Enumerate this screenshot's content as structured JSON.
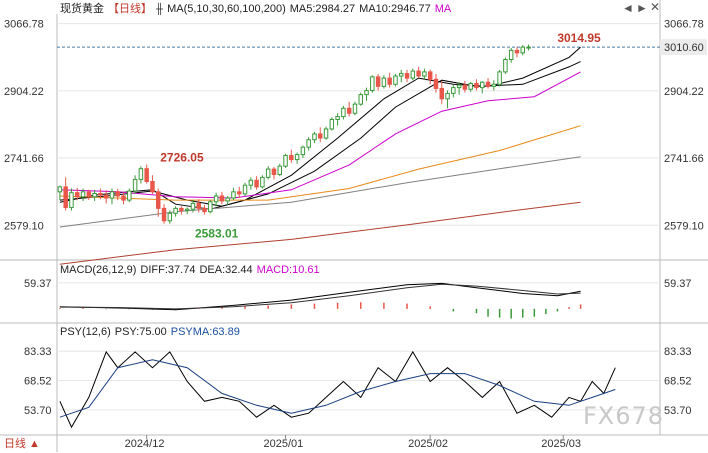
{
  "header": {
    "instrument": "现货黄金",
    "period_tag": "【日线】",
    "ma_label": "MA(5,10,30,60,100,200)",
    "ma5_label": "MA5:2984.27",
    "ma10_label": "MA10:2946.77",
    "ma_toggle": "MA",
    "nav_left": "◄",
    "nav_right": "►",
    "close_btn": "✕"
  },
  "macd_legend": {
    "title": "MACD(26,12,9)",
    "diff": "DIFF:37.74",
    "dea": "DEA:32.44",
    "macd": "MACD:10.61"
  },
  "psy_legend": {
    "title": "PSY(12,6)",
    "psy": "PSY:75.00",
    "psyma": "PSYMA:63.89"
  },
  "footer": {
    "period_button": "日线 ▲"
  },
  "watermark": "FX678",
  "colors": {
    "up": "#3a9a3a",
    "down": "#e8574a",
    "ma5": "#000000",
    "ma10": "#000000",
    "ma30": "#cc00cc",
    "ma60": "#e88a1a",
    "ma100": "#808080",
    "ma200": "#b04030",
    "last_price_bg": "#ececec",
    "grid": "#e6e6e6"
  },
  "chart_data": [
    {
      "type": "candlestick",
      "name": "price",
      "y_ticks": [
        "3066.78",
        "2904.22",
        "2741.66",
        "2579.10"
      ],
      "y_tick_values": [
        3066.78,
        2904.22,
        2741.66,
        2579.1
      ],
      "ylim": [
        2500,
        3090
      ],
      "x_labels": [
        {
          "index": 15,
          "label": "2024/12"
        },
        {
          "index": 39,
          "label": "2025/01"
        },
        {
          "index": 64,
          "label": "2025/02"
        },
        {
          "index": 87,
          "label": "2025/03"
        }
      ],
      "last_price": "3010.60",
      "annotations": [
        {
          "index": 17,
          "value": 2726.05,
          "label": "2726.05"
        },
        {
          "index": 23,
          "value": 2583.01,
          "label": "2583.01"
        },
        {
          "index": 96,
          "value": 3014.95,
          "label": "3014.95"
        }
      ],
      "candles": [
        [
          2660,
          2675,
          2640,
          2672
        ],
        [
          2672,
          2695,
          2615,
          2622
        ],
        [
          2622,
          2668,
          2615,
          2658
        ],
        [
          2658,
          2670,
          2640,
          2648
        ],
        [
          2648,
          2668,
          2638,
          2660
        ],
        [
          2660,
          2665,
          2640,
          2648
        ],
        [
          2648,
          2665,
          2638,
          2656
        ],
        [
          2656,
          2668,
          2642,
          2652
        ],
        [
          2652,
          2664,
          2632,
          2645
        ],
        [
          2645,
          2668,
          2630,
          2660
        ],
        [
          2660,
          2667,
          2640,
          2650
        ],
        [
          2650,
          2658,
          2630,
          2640
        ],
        [
          2640,
          2668,
          2635,
          2662
        ],
        [
          2662,
          2700,
          2655,
          2690
        ],
        [
          2690,
          2722,
          2680,
          2716
        ],
        [
          2716,
          2726,
          2680,
          2685
        ],
        [
          2685,
          2700,
          2655,
          2660
        ],
        [
          2660,
          2668,
          2600,
          2620
        ],
        [
          2620,
          2630,
          2583,
          2590
        ],
        [
          2590,
          2615,
          2583,
          2608
        ],
        [
          2608,
          2625,
          2600,
          2620
        ],
        [
          2620,
          2625,
          2605,
          2615
        ],
        [
          2615,
          2622,
          2606,
          2618
        ],
        [
          2618,
          2640,
          2610,
          2632
        ],
        [
          2632,
          2642,
          2610,
          2620
        ],
        [
          2620,
          2628,
          2605,
          2612
        ],
        [
          2612,
          2640,
          2608,
          2636
        ],
        [
          2636,
          2658,
          2625,
          2650
        ],
        [
          2650,
          2660,
          2630,
          2638
        ],
        [
          2638,
          2650,
          2628,
          2645
        ],
        [
          2645,
          2670,
          2640,
          2660
        ],
        [
          2660,
          2672,
          2645,
          2655
        ],
        [
          2655,
          2682,
          2650,
          2676
        ],
        [
          2676,
          2695,
          2665,
          2688
        ],
        [
          2688,
          2698,
          2665,
          2672
        ],
        [
          2672,
          2700,
          2668,
          2695
        ],
        [
          2695,
          2722,
          2690,
          2715
        ],
        [
          2715,
          2720,
          2690,
          2702
        ],
        [
          2702,
          2728,
          2698,
          2722
        ],
        [
          2722,
          2752,
          2718,
          2748
        ],
        [
          2748,
          2762,
          2730,
          2738
        ],
        [
          2738,
          2755,
          2728,
          2750
        ],
        [
          2750,
          2772,
          2742,
          2768
        ],
        [
          2768,
          2792,
          2760,
          2786
        ],
        [
          2786,
          2805,
          2778,
          2800
        ],
        [
          2800,
          2816,
          2780,
          2790
        ],
        [
          2790,
          2818,
          2786,
          2812
        ],
        [
          2812,
          2840,
          2808,
          2835
        ],
        [
          2835,
          2850,
          2820,
          2842
        ],
        [
          2842,
          2868,
          2835,
          2862
        ],
        [
          2862,
          2878,
          2842,
          2850
        ],
        [
          2850,
          2878,
          2845,
          2872
        ],
        [
          2872,
          2900,
          2868,
          2895
        ],
        [
          2895,
          2912,
          2880,
          2905
        ],
        [
          2905,
          2942,
          2900,
          2938
        ],
        [
          2938,
          2945,
          2905,
          2915
        ],
        [
          2915,
          2942,
          2910,
          2935
        ],
        [
          2935,
          2948,
          2912,
          2920
        ],
        [
          2920,
          2945,
          2915,
          2940
        ],
        [
          2940,
          2955,
          2925,
          2946
        ],
        [
          2946,
          2955,
          2925,
          2935
        ],
        [
          2935,
          2958,
          2930,
          2952
        ],
        [
          2952,
          2962,
          2935,
          2940
        ],
        [
          2940,
          2958,
          2932,
          2950
        ],
        [
          2950,
          2955,
          2920,
          2932
        ],
        [
          2932,
          2945,
          2900,
          2910
        ],
        [
          2910,
          2928,
          2872,
          2885
        ],
        [
          2885,
          2905,
          2862,
          2898
        ],
        [
          2898,
          2918,
          2888,
          2912
        ],
        [
          2912,
          2925,
          2895,
          2918
        ],
        [
          2918,
          2928,
          2900,
          2908
        ],
        [
          2908,
          2926,
          2902,
          2922
        ],
        [
          2922,
          2932,
          2905,
          2912
        ],
        [
          2912,
          2928,
          2898,
          2925
        ],
        [
          2925,
          2935,
          2910,
          2915
        ],
        [
          2915,
          2930,
          2905,
          2920
        ],
        [
          2920,
          2955,
          2915,
          2950
        ],
        [
          2950,
          2985,
          2945,
          2980
        ],
        [
          2980,
          3008,
          2972,
          3002
        ],
        [
          3002,
          3010,
          2985,
          2996
        ],
        [
          2996,
          3015,
          2990,
          3010
        ],
        [
          3010,
          3016,
          3002,
          3010
        ]
      ],
      "moving_averages": [
        {
          "name": "ma5",
          "key": "ma5",
          "values": [
            [
              0,
              2635
            ],
            [
              6,
              2652
            ],
            [
              12,
              2660
            ],
            [
              16,
              2665
            ],
            [
              20,
              2630
            ],
            [
              26,
              2618
            ],
            [
              32,
              2640
            ],
            [
              40,
              2700
            ],
            [
              48,
              2790
            ],
            [
              56,
              2885
            ],
            [
              62,
              2935
            ],
            [
              68,
              2920
            ],
            [
              74,
              2915
            ],
            [
              80,
              2935
            ],
            [
              88,
              2985
            ],
            [
              90,
              3010
            ]
          ]
        },
        {
          "name": "ma10",
          "key": "ma10",
          "values": [
            [
              0,
              2640
            ],
            [
              8,
              2650
            ],
            [
              16,
              2662
            ],
            [
              22,
              2640
            ],
            [
              28,
              2625
            ],
            [
              36,
              2655
            ],
            [
              44,
              2710
            ],
            [
              52,
              2790
            ],
            [
              58,
              2865
            ],
            [
              66,
              2930
            ],
            [
              72,
              2915
            ],
            [
              80,
              2920
            ],
            [
              88,
              2962
            ],
            [
              90,
              2975
            ]
          ]
        },
        {
          "name": "ma30",
          "key": "ma30",
          "values": [
            [
              0,
              2665
            ],
            [
              10,
              2660
            ],
            [
              20,
              2648
            ],
            [
              30,
              2645
            ],
            [
              40,
              2665
            ],
            [
              50,
              2725
            ],
            [
              58,
              2800
            ],
            [
              66,
              2855
            ],
            [
              74,
              2880
            ],
            [
              82,
              2890
            ],
            [
              90,
              2950
            ]
          ]
        },
        {
          "name": "ma60",
          "key": "ma60",
          "values": [
            [
              0,
              2650
            ],
            [
              20,
              2640
            ],
            [
              36,
              2640
            ],
            [
              50,
              2668
            ],
            [
              62,
              2715
            ],
            [
              76,
              2760
            ],
            [
              90,
              2820
            ]
          ]
        },
        {
          "name": "ma100",
          "key": "ma100",
          "values": [
            [
              0,
              2575
            ],
            [
              20,
              2612
            ],
            [
              40,
              2635
            ],
            [
              60,
              2682
            ],
            [
              76,
              2716
            ],
            [
              90,
              2745
            ]
          ]
        },
        {
          "name": "ma200",
          "key": "ma200",
          "values": [
            [
              0,
              2485
            ],
            [
              20,
              2520
            ],
            [
              40,
              2545
            ],
            [
              60,
              2580
            ],
            [
              76,
              2610
            ],
            [
              90,
              2635
            ]
          ]
        }
      ]
    },
    {
      "type": "macd",
      "y_ticks": [
        "59.37"
      ],
      "y_tick_values": [
        59.37
      ],
      "ylim": [
        -30,
        75
      ],
      "diff": [
        [
          0,
          5
        ],
        [
          10,
          2
        ],
        [
          20,
          -2
        ],
        [
          30,
          8
        ],
        [
          40,
          20
        ],
        [
          50,
          38
        ],
        [
          60,
          55
        ],
        [
          66,
          58
        ],
        [
          72,
          48
        ],
        [
          80,
          35
        ],
        [
          86,
          30
        ],
        [
          90,
          40
        ]
      ],
      "dea": [
        [
          0,
          4
        ],
        [
          10,
          3
        ],
        [
          20,
          0
        ],
        [
          30,
          5
        ],
        [
          40,
          14
        ],
        [
          50,
          30
        ],
        [
          60,
          48
        ],
        [
          66,
          56
        ],
        [
          72,
          52
        ],
        [
          80,
          42
        ],
        [
          86,
          34
        ],
        [
          90,
          36
        ]
      ],
      "hist": [
        [
          0,
          2
        ],
        [
          4,
          2
        ],
        [
          8,
          -1
        ],
        [
          12,
          -1
        ],
        [
          16,
          -2
        ],
        [
          20,
          -3
        ],
        [
          24,
          2
        ],
        [
          28,
          4
        ],
        [
          32,
          6
        ],
        [
          36,
          8
        ],
        [
          40,
          10
        ],
        [
          44,
          12
        ],
        [
          48,
          14
        ],
        [
          52,
          15
        ],
        [
          56,
          14
        ],
        [
          60,
          12
        ],
        [
          64,
          6
        ],
        [
          68,
          -6
        ],
        [
          72,
          -10
        ],
        [
          74,
          -18
        ],
        [
          76,
          -20
        ],
        [
          78,
          -22
        ],
        [
          80,
          -20
        ],
        [
          82,
          -18
        ],
        [
          84,
          -12
        ],
        [
          86,
          -6
        ],
        [
          88,
          4
        ],
        [
          90,
          10
        ]
      ]
    },
    {
      "type": "psy",
      "y_ticks": [
        "83.33",
        "68.52",
        "53.70"
      ],
      "y_tick_values": [
        83.33,
        68.52,
        53.7
      ],
      "ylim": [
        42,
        90
      ],
      "psy": [
        [
          0,
          58
        ],
        [
          2,
          45
        ],
        [
          5,
          60
        ],
        [
          8,
          83
        ],
        [
          10,
          75
        ],
        [
          13,
          83
        ],
        [
          16,
          75
        ],
        [
          19,
          83
        ],
        [
          22,
          68
        ],
        [
          25,
          58
        ],
        [
          28,
          60
        ],
        [
          31,
          58
        ],
        [
          34,
          50
        ],
        [
          37,
          56
        ],
        [
          40,
          50
        ],
        [
          43,
          52
        ],
        [
          46,
          60
        ],
        [
          49,
          68
        ],
        [
          52,
          60
        ],
        [
          55,
          75
        ],
        [
          58,
          68
        ],
        [
          61,
          83
        ],
        [
          64,
          68
        ],
        [
          67,
          75
        ],
        [
          70,
          68
        ],
        [
          73,
          60
        ],
        [
          76,
          68
        ],
        [
          79,
          52
        ],
        [
          82,
          56
        ],
        [
          85,
          50
        ],
        [
          88,
          60
        ],
        [
          90,
          58
        ],
        [
          92,
          68
        ],
        [
          94,
          62
        ],
        [
          96,
          75
        ]
      ],
      "psyma": [
        [
          0,
          50
        ],
        [
          5,
          55
        ],
        [
          10,
          75
        ],
        [
          16,
          79
        ],
        [
          22,
          75
        ],
        [
          28,
          62
        ],
        [
          34,
          56
        ],
        [
          40,
          52
        ],
        [
          46,
          56
        ],
        [
          52,
          63
        ],
        [
          58,
          68
        ],
        [
          64,
          72
        ],
        [
          70,
          72
        ],
        [
          76,
          66
        ],
        [
          82,
          58
        ],
        [
          88,
          56
        ],
        [
          92,
          60
        ],
        [
          96,
          64
        ]
      ]
    }
  ]
}
